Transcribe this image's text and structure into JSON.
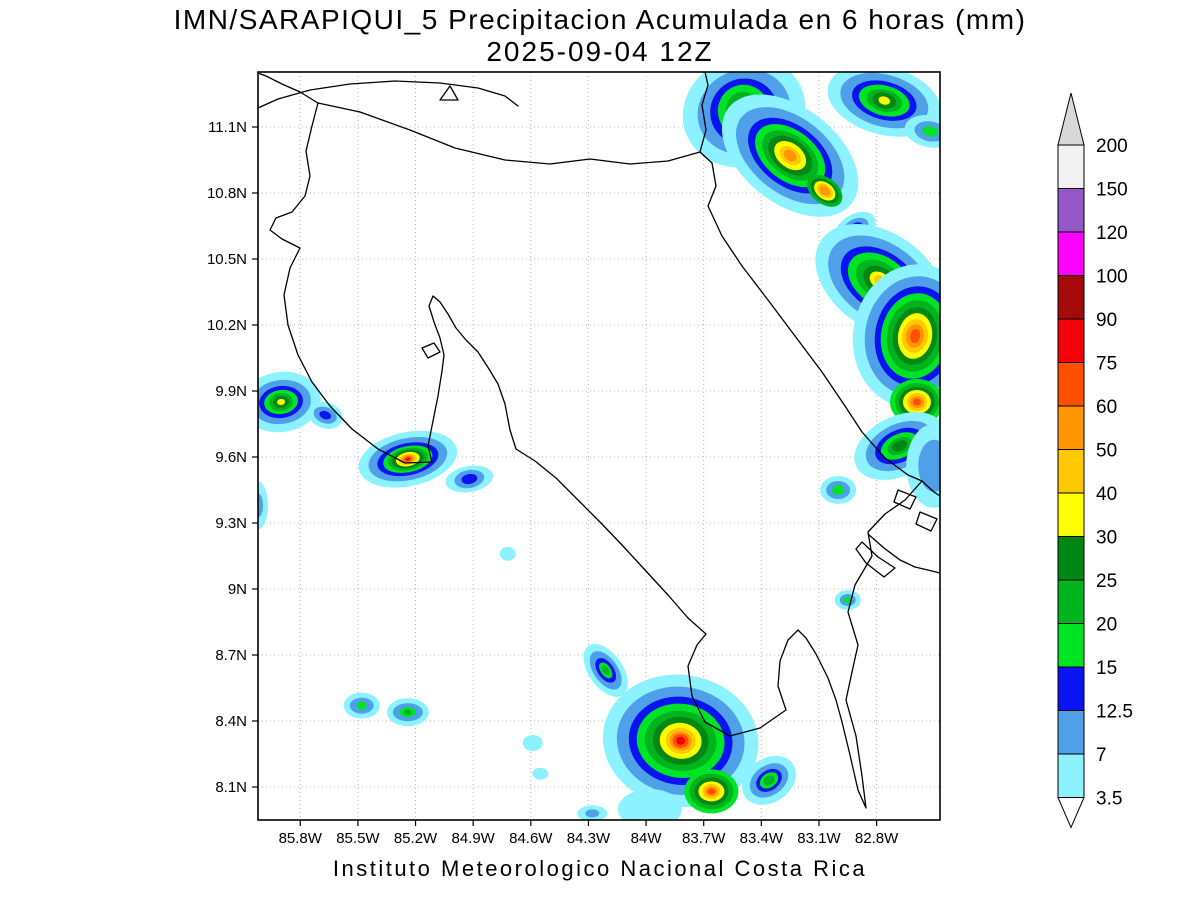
{
  "header": {
    "title": "IMN/SARAPIQUI_5 Precipitacion Acumulada en 6 horas (mm)",
    "subtitle": "2025-09-04 12Z"
  },
  "footer": {
    "credit": "Instituto Meteorologico Nacional Costa Rica"
  },
  "axes": {
    "x_ticks": [
      {
        "value": 85.8,
        "label": "85.8W"
      },
      {
        "value": 85.5,
        "label": "85.5W"
      },
      {
        "value": 85.2,
        "label": "85.2W"
      },
      {
        "value": 84.9,
        "label": "84.9W"
      },
      {
        "value": 84.6,
        "label": "84.6W"
      },
      {
        "value": 84.3,
        "label": "84.3W"
      },
      {
        "value": 84.0,
        "label": "84W"
      },
      {
        "value": 83.7,
        "label": "83.7W"
      },
      {
        "value": 83.4,
        "label": "83.4W"
      },
      {
        "value": 83.1,
        "label": "83.1W"
      },
      {
        "value": 82.8,
        "label": "82.8W"
      }
    ],
    "y_ticks": [
      {
        "value": 11.1,
        "label": "11.1N"
      },
      {
        "value": 10.8,
        "label": "10.8N"
      },
      {
        "value": 10.5,
        "label": "10.5N"
      },
      {
        "value": 10.2,
        "label": "10.2N"
      },
      {
        "value": 9.9,
        "label": "9.9N"
      },
      {
        "value": 9.6,
        "label": "9.6N"
      },
      {
        "value": 9.3,
        "label": "9.3N"
      },
      {
        "value": 9.0,
        "label": "9N"
      },
      {
        "value": 8.7,
        "label": "8.7N"
      },
      {
        "value": 8.4,
        "label": "8.4N"
      },
      {
        "value": 8.1,
        "label": "8.1N"
      }
    ]
  },
  "colorbar": {
    "boundary_labels_top_to_bottom": [
      "200",
      "150",
      "120",
      "100",
      "90",
      "75",
      "60",
      "50",
      "40",
      "30",
      "25",
      "20",
      "15",
      "12.5",
      "7",
      "3.5"
    ],
    "segment_colors_top_to_bottom": [
      "#F2F2F2",
      "#9658C8",
      "#FF00FF",
      "#A50A0A",
      "#F5000A",
      "#FF5000",
      "#FF9600",
      "#FFC800",
      "#FFFF00",
      "#008714",
      "#00B41E",
      "#00E426",
      "#0A14F0",
      "#4FA0E8",
      "#8CF2FF"
    ],
    "above_max_color": "#D9D9D9",
    "below_min_color": "#FFFFFF"
  },
  "chart_data": {
    "type": "heatmap",
    "title": "IMN/SARAPIQUI_5 Precipitacion Acumulada en 6 horas (mm)",
    "valid_time": "2025-09-04 12Z",
    "units": "mm",
    "grid": "dashed",
    "x_range_deg_west": [
      86.02,
      82.47
    ],
    "y_range_deg_north": [
      7.95,
      11.35
    ],
    "levels": [
      3.5,
      7,
      12.5,
      15,
      20,
      25,
      30,
      40,
      50,
      60,
      75,
      90,
      100,
      120,
      150,
      200
    ],
    "level_colors": {
      "3.5": "#8CF2FF",
      "7": "#4FA0E8",
      "12.5": "#0A14F0",
      "15": "#00E426",
      "20": "#00B41E",
      "25": "#008714",
      "30": "#FFFF00",
      "40": "#FFC800",
      "50": "#FF9600",
      "60": "#FF5000",
      "75": "#F5000A",
      "90": "#A50A0A",
      "100": "#FF00FF",
      "120": "#9658C8",
      "150": "#F2F2F2",
      "200": "#D9D9D9"
    },
    "ring_format": [
      "level_mm",
      "rx_px",
      "ry_px"
    ],
    "cells": [
      {
        "id": "ne-caribbean-1",
        "lon": 83.49,
        "lat": 11.17,
        "rot": -20,
        "rings": [
          [
            3.5,
            62,
            55
          ],
          [
            7,
            47,
            42
          ],
          [
            12.5,
            34,
            33
          ],
          [
            15,
            26,
            27
          ],
          [
            20,
            18,
            20
          ],
          [
            25,
            12,
            14
          ],
          [
            30,
            6,
            7
          ]
        ]
      },
      {
        "id": "ne-caribbean-2",
        "lon": 83.25,
        "lat": 10.97,
        "rot": 38,
        "rings": [
          [
            3.5,
            78,
            48
          ],
          [
            7,
            62,
            38
          ],
          [
            12.5,
            48,
            30
          ],
          [
            15,
            40,
            25
          ],
          [
            20,
            32,
            20
          ],
          [
            25,
            25,
            16
          ],
          [
            30,
            18,
            12
          ],
          [
            40,
            12,
            8
          ],
          [
            50,
            7,
            5
          ]
        ]
      },
      {
        "id": "ne-caribbean-3",
        "lon": 83.07,
        "lat": 10.81,
        "rot": 38,
        "rings": [
          [
            20,
            20,
            13
          ],
          [
            25,
            16,
            10
          ],
          [
            30,
            12,
            8
          ],
          [
            40,
            9,
            6
          ],
          [
            50,
            6,
            4
          ]
        ]
      },
      {
        "id": "ne-corner-1",
        "lon": 82.76,
        "lat": 11.22,
        "rot": 15,
        "rings": [
          [
            3.5,
            58,
            34
          ],
          [
            7,
            45,
            26
          ],
          [
            12.5,
            33,
            19
          ],
          [
            15,
            26,
            15
          ],
          [
            20,
            18,
            11
          ],
          [
            25,
            12,
            8
          ],
          [
            30,
            6,
            4
          ]
        ]
      },
      {
        "id": "ne-corner-2",
        "lon": 82.52,
        "lat": 11.08,
        "rot": 10,
        "rings": [
          [
            3.5,
            26,
            16
          ],
          [
            7,
            16,
            10
          ],
          [
            15,
            8,
            5
          ]
        ]
      },
      {
        "id": "ne-small",
        "lon": 82.91,
        "lat": 10.64,
        "rot": -30,
        "rings": [
          [
            3.5,
            22,
            14
          ],
          [
            7,
            14,
            9
          ],
          [
            12.5,
            8,
            5
          ]
        ]
      },
      {
        "id": "talamanca-1",
        "lon": 82.78,
        "lat": 10.4,
        "rot": 35,
        "rings": [
          [
            3.5,
            72,
            48
          ],
          [
            7,
            58,
            38
          ],
          [
            12.5,
            44,
            29
          ],
          [
            15,
            36,
            24
          ],
          [
            20,
            27,
            18
          ],
          [
            25,
            19,
            13
          ],
          [
            30,
            12,
            8
          ],
          [
            40,
            7,
            5
          ]
        ]
      },
      {
        "id": "talamanca-2",
        "lon": 82.6,
        "lat": 10.15,
        "rot": 10,
        "rings": [
          [
            3.5,
            62,
            72
          ],
          [
            7,
            50,
            60
          ],
          [
            12.5,
            40,
            50
          ],
          [
            15,
            34,
            43
          ],
          [
            20,
            28,
            36
          ],
          [
            25,
            22,
            29
          ],
          [
            30,
            17,
            23
          ],
          [
            40,
            13,
            17
          ],
          [
            50,
            9,
            12
          ],
          [
            60,
            5,
            7
          ]
        ]
      },
      {
        "id": "talamanca-3",
        "lon": 82.59,
        "lat": 9.85,
        "rot": 0,
        "rings": [
          [
            15,
            27,
            23
          ],
          [
            20,
            22,
            19
          ],
          [
            25,
            18,
            15
          ],
          [
            30,
            14,
            12
          ],
          [
            40,
            10,
            9
          ],
          [
            50,
            7,
            6
          ],
          [
            60,
            4,
            3.5
          ]
        ]
      },
      {
        "id": "talamanca-4",
        "lon": 82.68,
        "lat": 9.65,
        "rot": -25,
        "rings": [
          [
            3.5,
            48,
            30
          ],
          [
            7,
            36,
            22
          ],
          [
            12.5,
            26,
            16
          ],
          [
            15,
            20,
            12
          ],
          [
            20,
            13,
            8
          ],
          [
            25,
            8,
            5
          ]
        ]
      },
      {
        "id": "east-edge",
        "lon": 82.5,
        "lat": 9.56,
        "rot": 0,
        "rings": [
          [
            3.5,
            28,
            42
          ],
          [
            7,
            16,
            26
          ]
        ]
      },
      {
        "id": "sixaola-dot",
        "lon": 83.0,
        "lat": 9.45,
        "rot": 0,
        "rings": [
          [
            3.5,
            18,
            14
          ],
          [
            7,
            12,
            9
          ],
          [
            15,
            6,
            5
          ]
        ]
      },
      {
        "id": "border-dot",
        "lon": 82.95,
        "lat": 8.95,
        "rot": 0,
        "rings": [
          [
            3.5,
            13,
            10
          ],
          [
            7,
            8,
            6
          ],
          [
            15,
            4,
            3
          ]
        ]
      },
      {
        "id": "nicoya-north-1",
        "lon": 85.9,
        "lat": 9.85,
        "rot": -8,
        "rings": [
          [
            3.5,
            40,
            30
          ],
          [
            7,
            30,
            22
          ],
          [
            12.5,
            22,
            16
          ],
          [
            15,
            17,
            12
          ],
          [
            20,
            12,
            9
          ],
          [
            25,
            8,
            6
          ],
          [
            30,
            4,
            3
          ]
        ]
      },
      {
        "id": "nicoya-north-2",
        "lon": 85.67,
        "lat": 9.79,
        "rot": 20,
        "rings": [
          [
            3.5,
            18,
            13
          ],
          [
            7,
            12,
            8
          ],
          [
            12.5,
            6,
            4
          ]
        ]
      },
      {
        "id": "nicoya-core",
        "lon": 85.24,
        "lat": 9.59,
        "rot": -12,
        "rings": [
          [
            3.5,
            50,
            27
          ],
          [
            7,
            40,
            21
          ],
          [
            12.5,
            31,
            16
          ],
          [
            15,
            25,
            13
          ],
          [
            20,
            20,
            11
          ],
          [
            25,
            16,
            9
          ],
          [
            30,
            12,
            7
          ],
          [
            40,
            9,
            5.5
          ],
          [
            50,
            6,
            4
          ],
          [
            60,
            4,
            2.5
          ],
          [
            75,
            2,
            1.5
          ]
        ]
      },
      {
        "id": "nicoya-east",
        "lon": 84.92,
        "lat": 9.5,
        "rot": -10,
        "rings": [
          [
            3.5,
            24,
            13
          ],
          [
            7,
            15,
            9
          ],
          [
            12.5,
            8,
            5
          ]
        ]
      },
      {
        "id": "west-edge",
        "lon": 86.02,
        "lat": 9.38,
        "rot": 0,
        "rings": [
          [
            3.5,
            10,
            24
          ],
          [
            7,
            5,
            12
          ]
        ]
      },
      {
        "id": "central-dot",
        "lon": 84.72,
        "lat": 9.16,
        "rot": 0,
        "rings": [
          [
            3.5,
            8,
            7
          ]
        ]
      },
      {
        "id": "pacific-coast",
        "lon": 84.21,
        "lat": 8.63,
        "rot": 55,
        "rings": [
          [
            3.5,
            30,
            17
          ],
          [
            7,
            22,
            12
          ],
          [
            12.5,
            14,
            8
          ],
          [
            15,
            9,
            5
          ],
          [
            20,
            5,
            3
          ]
        ]
      },
      {
        "id": "osa-core-1",
        "lon": 83.82,
        "lat": 8.31,
        "rot": 8,
        "rings": [
          [
            3.5,
            78,
            66
          ],
          [
            7,
            64,
            54
          ],
          [
            12.5,
            52,
            44
          ],
          [
            15,
            44,
            37
          ],
          [
            20,
            36,
            30
          ],
          [
            25,
            28,
            24
          ],
          [
            30,
            21,
            18
          ],
          [
            40,
            15,
            13
          ],
          [
            50,
            11,
            9.5
          ],
          [
            60,
            8,
            7
          ],
          [
            75,
            4.5,
            4
          ]
        ]
      },
      {
        "id": "osa-core-2",
        "lon": 83.66,
        "lat": 8.08,
        "rot": 0,
        "rings": [
          [
            15,
            27,
            22
          ],
          [
            20,
            22,
            18
          ],
          [
            25,
            17,
            14
          ],
          [
            30,
            13,
            10
          ],
          [
            40,
            9,
            7.5
          ],
          [
            50,
            6.5,
            5
          ],
          [
            60,
            4,
            3
          ]
        ]
      },
      {
        "id": "osa-tail",
        "lon": 83.98,
        "lat": 8.0,
        "rot": 0,
        "rings": [
          [
            3.5,
            32,
            20
          ]
        ]
      },
      {
        "id": "golfo-dulce",
        "lon": 83.36,
        "lat": 8.13,
        "rot": -35,
        "rings": [
          [
            3.5,
            29,
            22
          ],
          [
            7,
            21,
            15
          ],
          [
            12.5,
            14,
            10
          ],
          [
            15,
            10,
            7
          ],
          [
            20,
            6,
            4.5
          ]
        ]
      },
      {
        "id": "sw-pair-1",
        "lon": 85.48,
        "lat": 8.47,
        "rot": 0,
        "rings": [
          [
            3.5,
            18,
            13
          ],
          [
            7,
            12,
            8
          ],
          [
            15,
            5,
            4
          ]
        ]
      },
      {
        "id": "sw-pair-2",
        "lon": 85.24,
        "lat": 8.44,
        "rot": 0,
        "rings": [
          [
            3.5,
            21,
            14
          ],
          [
            7,
            15,
            9
          ],
          [
            15,
            8,
            5
          ],
          [
            20,
            4,
            3
          ]
        ]
      },
      {
        "id": "s-dot-1",
        "lon": 84.59,
        "lat": 8.3,
        "rot": 0,
        "rings": [
          [
            3.5,
            10,
            8
          ]
        ]
      },
      {
        "id": "s-dot-2",
        "lon": 84.55,
        "lat": 8.16,
        "rot": 0,
        "rings": [
          [
            3.5,
            8,
            6
          ]
        ]
      },
      {
        "id": "s-dot-3",
        "lon": 84.28,
        "lat": 7.98,
        "rot": 0,
        "rings": [
          [
            3.5,
            15,
            8
          ],
          [
            7,
            7,
            4
          ]
        ]
      }
    ]
  }
}
